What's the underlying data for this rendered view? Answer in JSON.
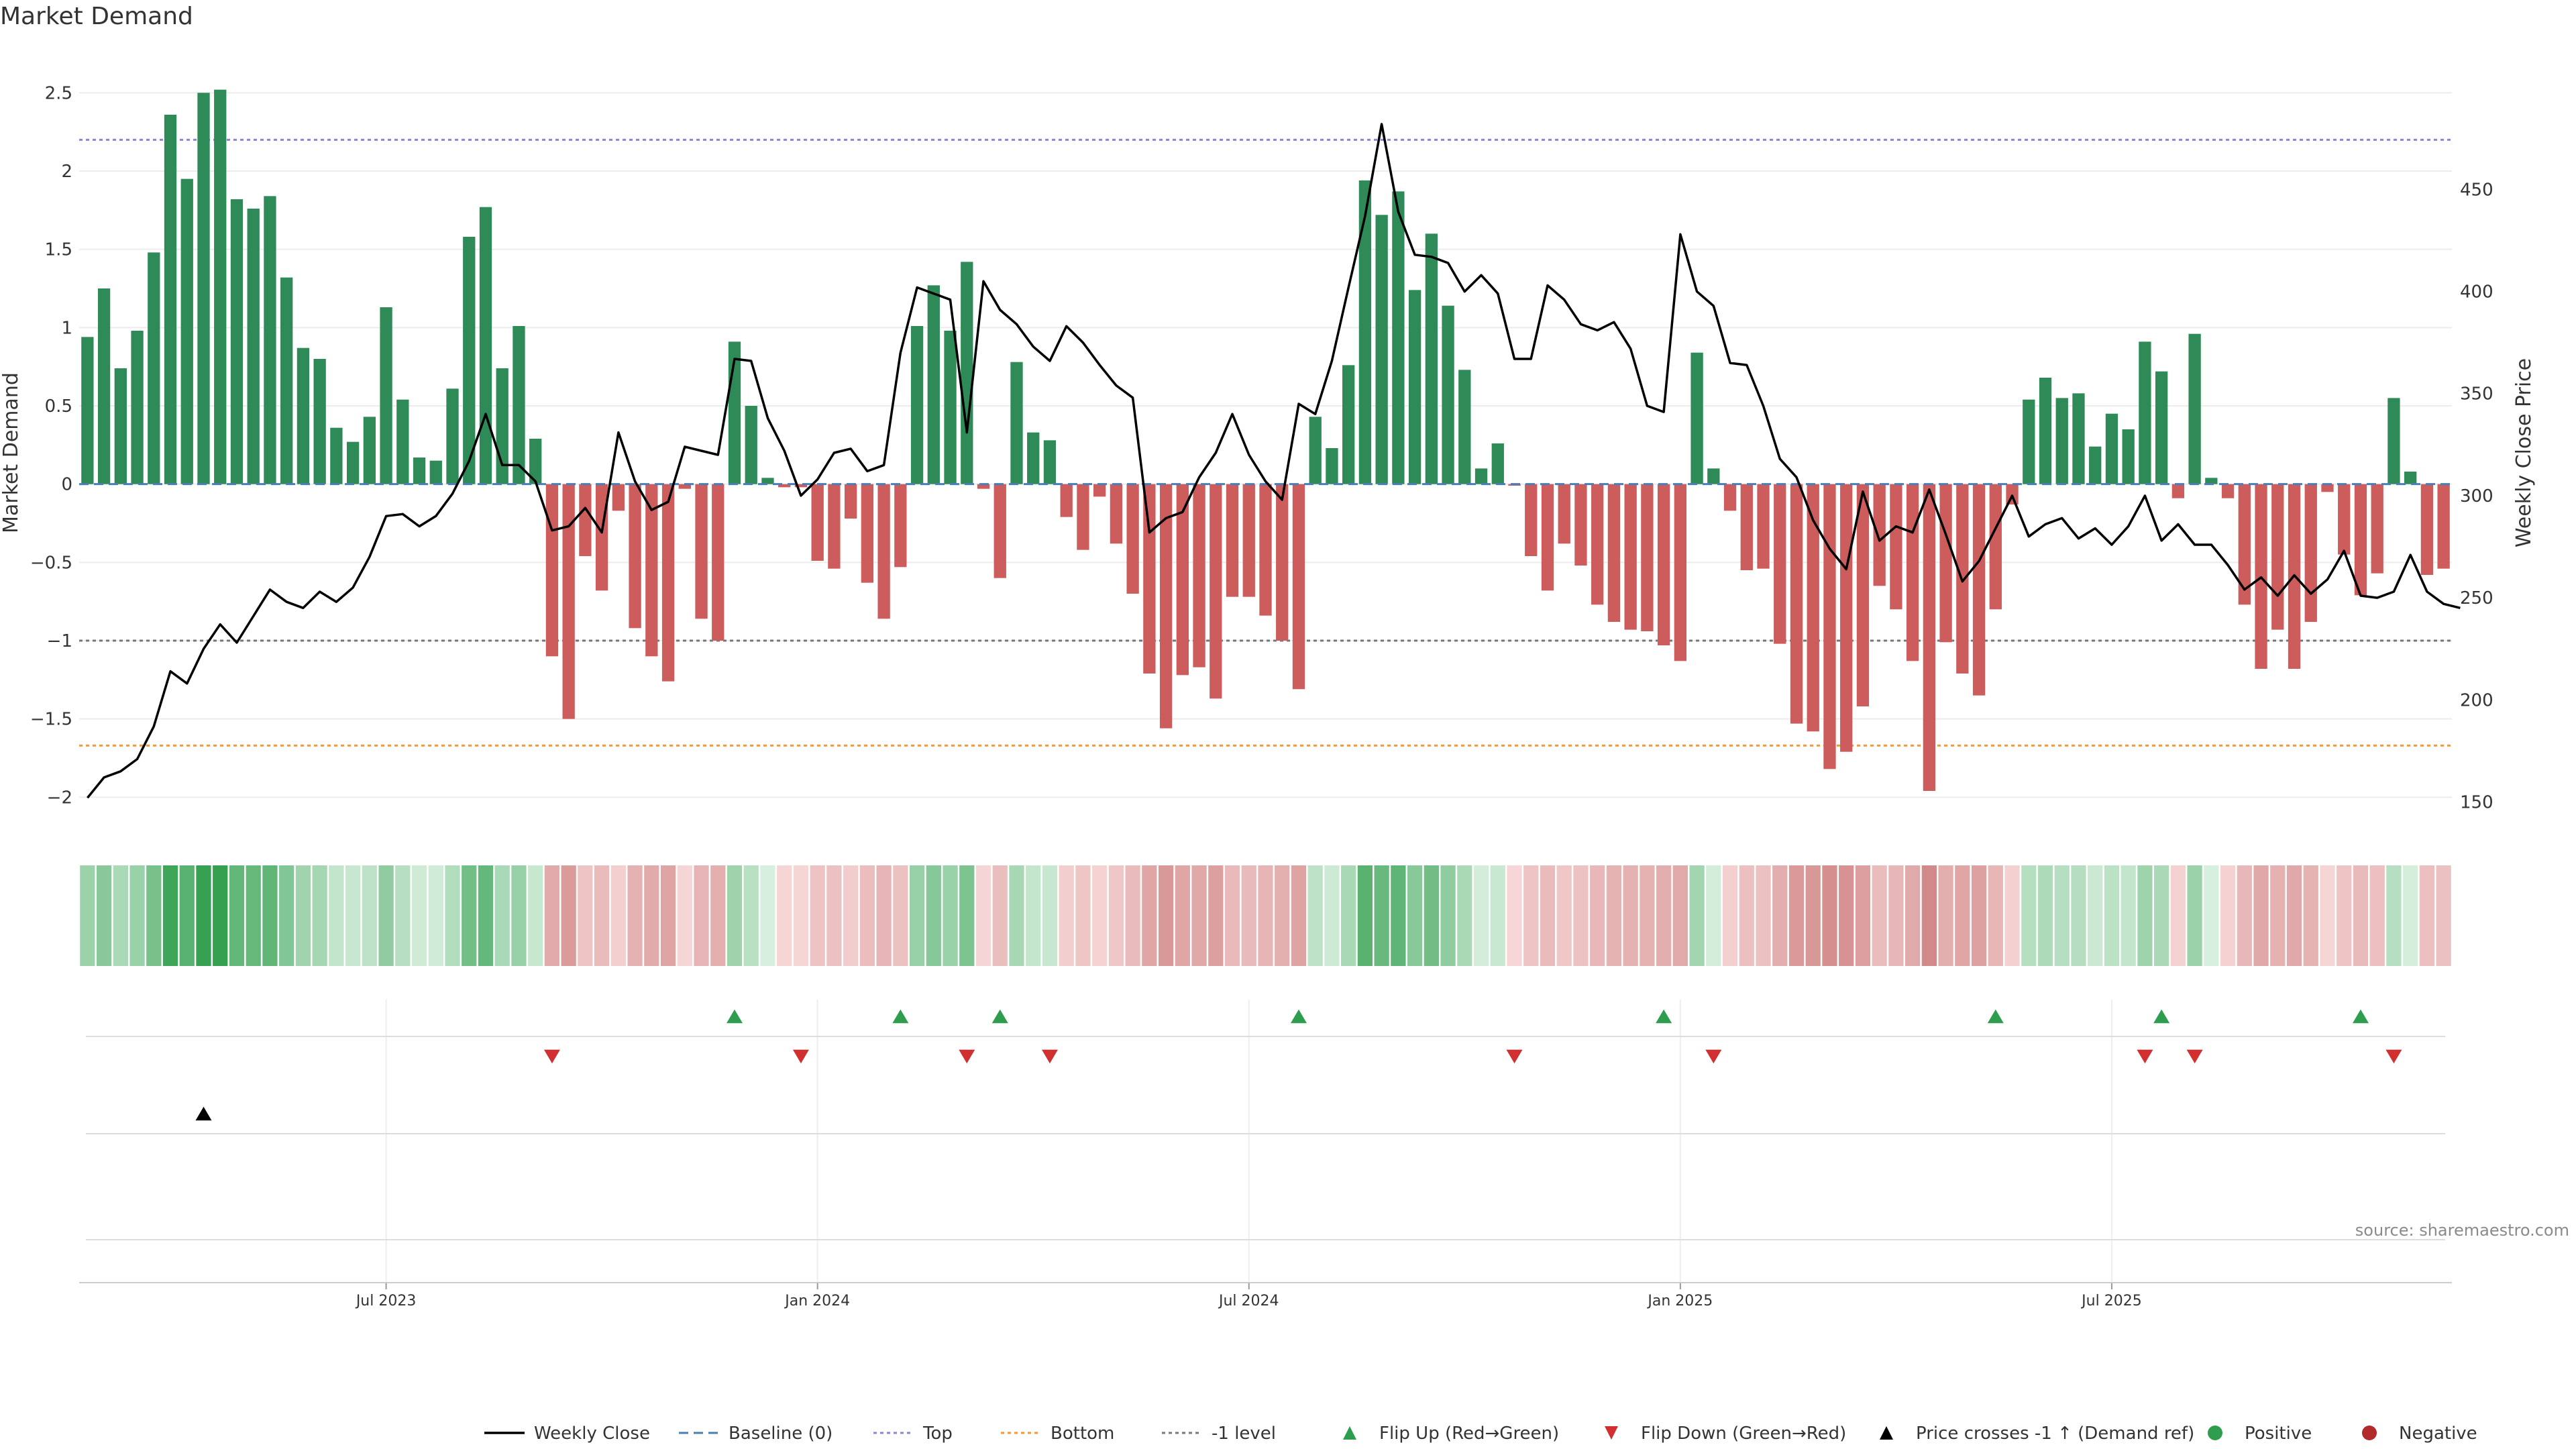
{
  "title": "Market Demand",
  "source": "source: sharemaestro.com",
  "colors": {
    "positive": "#2e8b57",
    "negative": "#cd5c5c",
    "price": "#000000",
    "top": "#8888cc",
    "bottom": "#ee9944",
    "minus_one": "#777777",
    "baseline": "#4a7fb5",
    "flip_up": "#2e9e4e",
    "flip_down": "#d23030"
  },
  "chart_data": {
    "type": "bar",
    "title": "Market Demand",
    "ylabel": "Market Demand",
    "y2label": "Weekly Close Price",
    "ylim": [
      -2.2,
      2.6
    ],
    "y2lim": [
      137,
      505
    ],
    "yticks": [
      {
        "v": 2.5,
        "label": "2.5"
      },
      {
        "v": 2,
        "label": "2"
      },
      {
        "v": 1.5,
        "label": "1.5"
      },
      {
        "v": 1,
        "label": "1"
      },
      {
        "v": 0.5,
        "label": "0.5"
      },
      {
        "v": 0,
        "label": "0"
      },
      {
        "v": -0.5,
        "label": "−0.5"
      },
      {
        "v": -1,
        "label": "−1"
      },
      {
        "v": -1.5,
        "label": "−1.5"
      },
      {
        "v": -2,
        "label": "−2"
      }
    ],
    "y2ticks": [
      {
        "v": 450,
        "label": "450"
      },
      {
        "v": 400,
        "label": "400"
      },
      {
        "v": 350,
        "label": "350"
      },
      {
        "v": 300,
        "label": "300"
      },
      {
        "v": 250,
        "label": "250"
      },
      {
        "v": 200,
        "label": "200"
      },
      {
        "v": 150,
        "label": "150"
      }
    ],
    "xticks": [
      {
        "week": 18,
        "label": "Jul 2023"
      },
      {
        "week": 44,
        "label": "Jan 2024"
      },
      {
        "week": 70,
        "label": "Jul 2024"
      },
      {
        "week": 96,
        "label": "Jan 2025"
      },
      {
        "week": 122,
        "label": "Jul 2025"
      }
    ],
    "reference_lines": {
      "top": 2.2,
      "bottom": -1.67,
      "minus_one": -1,
      "baseline": 0
    },
    "demand": [
      0.94,
      1.25,
      0.74,
      0.98,
      1.48,
      2.36,
      1.95,
      2.5,
      2.52,
      1.82,
      1.76,
      1.84,
      1.32,
      0.87,
      0.8,
      0.36,
      0.27,
      0.43,
      1.13,
      0.54,
      0.17,
      0.15,
      0.61,
      1.58,
      1.77,
      0.74,
      1.01,
      0.29,
      -1.1,
      -1.5,
      -0.46,
      -0.68,
      -0.17,
      -0.92,
      -1.1,
      -1.26,
      -0.03,
      -0.86,
      -1.0,
      0.91,
      0.5,
      0.04,
      -0.02,
      -0.02,
      -0.49,
      -0.54,
      -0.22,
      -0.63,
      -0.86,
      -0.53,
      1.01,
      1.27,
      0.98,
      1.42,
      -0.03,
      -0.6,
      0.78,
      0.33,
      0.28,
      -0.21,
      -0.42,
      -0.08,
      -0.38,
      -0.7,
      -1.21,
      -1.56,
      -1.22,
      -1.17,
      -1.37,
      -0.72,
      -0.72,
      -0.84,
      -1.0,
      -1.31,
      0.43,
      0.23,
      0.76,
      1.94,
      1.72,
      1.87,
      1.24,
      1.6,
      1.14,
      0.73,
      0.1,
      0.26,
      -0.01,
      -0.46,
      -0.68,
      -0.38,
      -0.52,
      -0.77,
      -0.88,
      -0.93,
      -0.94,
      -1.03,
      -1.13,
      0.84,
      0.1,
      -0.17,
      -0.55,
      -0.54,
      -1.02,
      -1.53,
      -1.58,
      -1.82,
      -1.71,
      -1.42,
      -0.65,
      -0.8,
      -1.13,
      -1.96,
      -1.01,
      -1.21,
      -1.35,
      -0.8,
      -0.13,
      0.54,
      0.68,
      0.55,
      0.58,
      0.24,
      0.45,
      0.35,
      0.91,
      0.72,
      -0.09,
      0.96,
      0.04,
      -0.09,
      -0.77,
      -1.18,
      -0.93,
      -1.18,
      -0.88,
      -0.05,
      -0.45,
      -0.71,
      -0.57,
      0.55,
      0.08,
      -0.58,
      -0.54
    ],
    "price": [
      152,
      162,
      165,
      171,
      187,
      214,
      208,
      225,
      237,
      228,
      241,
      254,
      248,
      245,
      253,
      248,
      255,
      270,
      290,
      291,
      285,
      290,
      301,
      317,
      340,
      315,
      315,
      307,
      283,
      285,
      294,
      282,
      331,
      307,
      293,
      297,
      324,
      322,
      320,
      367,
      366,
      338,
      322,
      300,
      308,
      321,
      323,
      312,
      315,
      370,
      402,
      399,
      396,
      331,
      405,
      391,
      384,
      373,
      366,
      383,
      375,
      364,
      354,
      348,
      282,
      289,
      292,
      309,
      321,
      340,
      320,
      307,
      298,
      345,
      340,
      366,
      402,
      437,
      482,
      439,
      418,
      417,
      414,
      400,
      408,
      399,
      367,
      367,
      403,
      396,
      384,
      381,
      385,
      372,
      344,
      341,
      428,
      400,
      393,
      365,
      364,
      344,
      318,
      309,
      288,
      274,
      264,
      302,
      278,
      285,
      282,
      303,
      281,
      258,
      268,
      284,
      300,
      280,
      286,
      289,
      279,
      284,
      276,
      285,
      300,
      278,
      286,
      276,
      276,
      266,
      254,
      260,
      251,
      261,
      252,
      259,
      273,
      251,
      250,
      253,
      271,
      253,
      247,
      245
    ],
    "flip_up_weeks": [
      39,
      49,
      55,
      73,
      95,
      115,
      125,
      137
    ],
    "flip_down_weeks": [
      28,
      43,
      53,
      58,
      86,
      98,
      124,
      127,
      139
    ],
    "price_cross_weeks": [
      7
    ],
    "legend": [
      {
        "key": "weekly_close",
        "label": "Weekly Close"
      },
      {
        "key": "baseline",
        "label": "Baseline (0)"
      },
      {
        "key": "top",
        "label": "Top"
      },
      {
        "key": "bottom",
        "label": "Bottom"
      },
      {
        "key": "minus_one",
        "label": "-1 level"
      },
      {
        "key": "flip_up",
        "label": "Flip Up (Red→Green)"
      },
      {
        "key": "flip_down",
        "label": "Flip Down (Green→Red)"
      },
      {
        "key": "price_cross",
        "label": "Price crosses -1 ↑ (Demand ref)"
      },
      {
        "key": "positive",
        "label": "Positive"
      },
      {
        "key": "negative",
        "label": "Negative"
      }
    ]
  }
}
